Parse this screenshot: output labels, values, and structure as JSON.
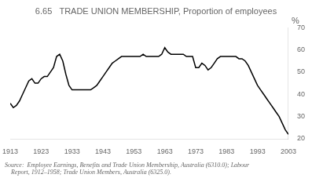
{
  "chart_data": {
    "type": "line",
    "title": "6.65   TRADE UNION MEMBERSHIP, Proportion of employees",
    "ylabel": "%",
    "annotation": "Source:  Employee Earnings, Benefits and Trade Union Membership, Australia (6310.0); Labour\n    Report, 1912–1958; Trade Union Members, Australia (6325.0).",
    "x": [
      1913,
      1914,
      1915,
      1916,
      1917,
      1918,
      1919,
      1920,
      1921,
      1922,
      1923,
      1924,
      1925,
      1926,
      1927,
      1928,
      1929,
      1930,
      1931,
      1932,
      1933,
      1934,
      1935,
      1936,
      1937,
      1938,
      1939,
      1940,
      1941,
      1942,
      1943,
      1944,
      1945,
      1946,
      1947,
      1948,
      1949,
      1950,
      1951,
      1952,
      1953,
      1954,
      1955,
      1956,
      1957,
      1958,
      1959,
      1960,
      1961,
      1962,
      1963,
      1964,
      1965,
      1966,
      1967,
      1968,
      1969,
      1970,
      1971,
      1972,
      1973,
      1974,
      1975,
      1976,
      1977,
      1978,
      1979,
      1980,
      1981,
      1982,
      1983,
      1984,
      1985,
      1986,
      1987,
      1988,
      1989,
      1990,
      1991,
      1992,
      1993,
      1994,
      1995,
      1996,
      1997,
      1998,
      1999,
      2000,
      2001,
      2002,
      2003
    ],
    "values": [
      36,
      34,
      35,
      37,
      40,
      43,
      46,
      47,
      45,
      45,
      47,
      48,
      48,
      50,
      52,
      57,
      58,
      55,
      49,
      44,
      42,
      42,
      42,
      42,
      42,
      42,
      42,
      43,
      44,
      46,
      48,
      50,
      52,
      54,
      55,
      56,
      57,
      57,
      57,
      57,
      57,
      57,
      57,
      58,
      57,
      57,
      57,
      57,
      57,
      58,
      61,
      59,
      58,
      58,
      58,
      58,
      58,
      57,
      57,
      57,
      52,
      52,
      54,
      53,
      51,
      52,
      54,
      56,
      57,
      57,
      57,
      57,
      57,
      57,
      56,
      56,
      55,
      53,
      50,
      47,
      44,
      42,
      40,
      38,
      36,
      34,
      32,
      30,
      27,
      24,
      22
    ],
    "color": "#000000",
    "xlim": [
      1913,
      2003
    ],
    "xticks": [
      1913,
      1923,
      1933,
      1943,
      1953,
      1963,
      1973,
      1983,
      1993,
      2003
    ],
    "ylim": [
      20,
      70
    ],
    "yticks": [
      20,
      30,
      40,
      50,
      60,
      70
    ],
    "grid": false
  }
}
